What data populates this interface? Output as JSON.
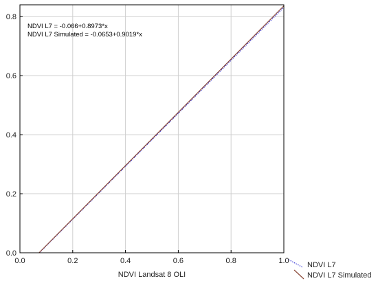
{
  "chart_data": {
    "type": "line",
    "title": "",
    "xlabel": "NDVI Landsat 8 OLI",
    "ylabel": "",
    "xlim": [
      0.0,
      1.0
    ],
    "ylim": [
      0.0,
      0.84
    ],
    "xticks": [
      0.0,
      0.2,
      0.4,
      0.6,
      0.8,
      1.0
    ],
    "yticks": [
      0.0,
      0.2,
      0.4,
      0.6,
      0.8
    ],
    "xtick_labels": [
      "0.0",
      "0.2",
      "0.4",
      "0.6",
      "0.8",
      "1.0"
    ],
    "ytick_labels": [
      "0.0",
      "0.2",
      "0.4",
      "0.6",
      "0.8"
    ],
    "grid": true,
    "legend_position": "bottom-right-outside",
    "annotations": [
      "NDVI L7 = -0.066+0.8973*x",
      "NDVI L7 Simulated = -0.0653+0.9019*x"
    ],
    "series": [
      {
        "name": "NDVI L7",
        "intercept": -0.066,
        "slope": 0.8973,
        "x": [
          0.0736,
          1.0
        ],
        "y": [
          0.0,
          0.8313
        ],
        "color": "#3b3bd6",
        "style": "dotted"
      },
      {
        "name": "NDVI L7 Simulated",
        "intercept": -0.0653,
        "slope": 0.9019,
        "x": [
          0.0724,
          1.0
        ],
        "y": [
          0.0,
          0.8366
        ],
        "color": "#8b4a3a",
        "style": "solid"
      }
    ]
  }
}
